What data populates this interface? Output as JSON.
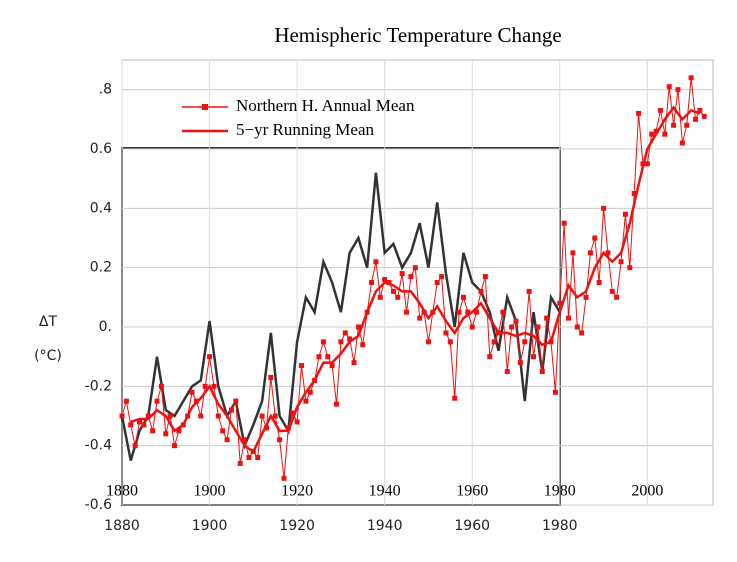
{
  "chart_data": {
    "type": "line",
    "title": "Hemispheric Temperature Change",
    "ylabel": "ΔT",
    "yunit": "(°C)",
    "xlim": [
      1880,
      2015
    ],
    "ylim": [
      -0.6,
      0.9
    ],
    "xticks": [
      1880,
      1900,
      1920,
      1940,
      1960,
      1980,
      2000
    ],
    "old_xticks": [
      1880,
      1900,
      1920,
      1940,
      1960,
      1980
    ],
    "yticks": [
      {
        "value": 0.8,
        "label": ".8"
      },
      0.6,
      0.4,
      0.2,
      {
        "value": 0,
        "label": "0."
      },
      -0.2,
      -0.4,
      -0.6
    ],
    "grid": true,
    "legend": "upper left",
    "series": [
      {
        "color": "#333333",
        "x": [
          1880,
          1882,
          1884,
          1886,
          1888,
          1890,
          1892,
          1894,
          1896,
          1898,
          1900,
          1902,
          1904,
          1906,
          1908,
          1910,
          1912,
          1914,
          1916,
          1918,
          1920,
          1922,
          1924,
          1926,
          1928,
          1930,
          1932,
          1934,
          1936,
          1938,
          1940,
          1942,
          1944,
          1946,
          1948,
          1950,
          1952,
          1954,
          1956,
          1958,
          1960,
          1962,
          1964,
          1966,
          1968,
          1970,
          1972,
          1974,
          1976,
          1978,
          1980
        ],
        "values": [
          -0.3,
          -0.45,
          -0.35,
          -0.3,
          -0.1,
          -0.28,
          -0.3,
          -0.25,
          -0.2,
          -0.18,
          0.02,
          -0.2,
          -0.3,
          -0.25,
          -0.4,
          -0.33,
          -0.25,
          -0.02,
          -0.3,
          -0.35,
          -0.05,
          0.1,
          0.05,
          0.22,
          0.15,
          0.05,
          0.25,
          0.3,
          0.2,
          0.52,
          0.25,
          0.28,
          0.2,
          0.25,
          0.35,
          0.2,
          0.42,
          0.18,
          0.0,
          0.25,
          0.15,
          0.12,
          0.05,
          -0.08,
          0.1,
          0.02,
          -0.25,
          0.05,
          -0.15,
          0.1,
          0.05
        ]
      },
      {
        "name": "Northern H. Annual Mean",
        "color": "#ee1111",
        "markers": true,
        "x": [
          1880,
          1881,
          1882,
          1883,
          1884,
          1885,
          1886,
          1887,
          1888,
          1889,
          1890,
          1891,
          1892,
          1893,
          1894,
          1895,
          1896,
          1897,
          1898,
          1899,
          1900,
          1901,
          1902,
          1903,
          1904,
          1905,
          1906,
          1907,
          1908,
          1909,
          1910,
          1911,
          1912,
          1913,
          1914,
          1915,
          1916,
          1917,
          1918,
          1919,
          1920,
          1921,
          1922,
          1923,
          1924,
          1925,
          1926,
          1927,
          1928,
          1929,
          1930,
          1931,
          1932,
          1933,
          1934,
          1935,
          1936,
          1937,
          1938,
          1939,
          1940,
          1941,
          1942,
          1943,
          1944,
          1945,
          1946,
          1947,
          1948,
          1949,
          1950,
          1951,
          1952,
          1953,
          1954,
          1955,
          1956,
          1957,
          1958,
          1959,
          1960,
          1961,
          1962,
          1963,
          1964,
          1965,
          1966,
          1967,
          1968,
          1969,
          1970,
          1971,
          1972,
          1973,
          1974,
          1975,
          1976,
          1977,
          1978,
          1979,
          1980,
          1981,
          1982,
          1983,
          1984,
          1985,
          1986,
          1987,
          1988,
          1989,
          1990,
          1991,
          1992,
          1993,
          1994,
          1995,
          1996,
          1997,
          1998,
          1999,
          2000,
          2001,
          2002,
          2003,
          2004,
          2005,
          2006,
          2007,
          2008,
          2009,
          2010,
          2011,
          2012,
          2013
        ],
        "values": [
          -0.3,
          -0.25,
          -0.33,
          -0.4,
          -0.32,
          -0.33,
          -0.3,
          -0.35,
          -0.25,
          -0.2,
          -0.36,
          -0.3,
          -0.4,
          -0.35,
          -0.33,
          -0.3,
          -0.22,
          -0.25,
          -0.3,
          -0.2,
          -0.1,
          -0.2,
          -0.3,
          -0.35,
          -0.38,
          -0.28,
          -0.25,
          -0.46,
          -0.38,
          -0.44,
          -0.42,
          -0.44,
          -0.3,
          -0.34,
          -0.17,
          -0.3,
          -0.38,
          -0.51,
          -0.34,
          -0.29,
          -0.32,
          -0.13,
          -0.25,
          -0.22,
          -0.18,
          -0.1,
          -0.05,
          -0.1,
          -0.13,
          -0.26,
          -0.05,
          -0.02,
          -0.04,
          -0.12,
          0.0,
          -0.06,
          0.05,
          0.15,
          0.22,
          0.1,
          0.16,
          0.15,
          0.12,
          0.1,
          0.18,
          0.05,
          0.17,
          0.2,
          0.03,
          0.05,
          -0.05,
          0.05,
          0.15,
          0.17,
          -0.02,
          -0.05,
          -0.24,
          0.05,
          0.1,
          0.05,
          0.0,
          0.05,
          0.12,
          0.17,
          -0.1,
          -0.05,
          -0.02,
          0.05,
          -0.15,
          0.0,
          0.02,
          -0.12,
          -0.05,
          0.12,
          -0.1,
          0.0,
          -0.15,
          0.03,
          -0.05,
          -0.22,
          0.08,
          0.35,
          0.03,
          0.25,
          0.0,
          -0.02,
          0.1,
          0.25,
          0.3,
          0.15,
          0.4,
          0.25,
          0.12,
          0.1,
          0.22,
          0.38,
          0.2,
          0.45,
          0.72,
          0.55,
          0.55,
          0.65,
          0.66,
          0.73,
          0.65,
          0.81,
          0.68,
          0.8,
          0.62,
          0.68,
          0.84,
          0.7,
          0.73,
          0.71
        ]
      },
      {
        "name": "5−yr Running Mean",
        "color": "#ee1111",
        "x": [
          1882,
          1884,
          1886,
          1888,
          1890,
          1892,
          1894,
          1896,
          1898,
          1900,
          1902,
          1904,
          1906,
          1908,
          1910,
          1912,
          1914,
          1916,
          1918,
          1920,
          1922,
          1924,
          1926,
          1928,
          1930,
          1932,
          1934,
          1936,
          1938,
          1940,
          1942,
          1944,
          1946,
          1948,
          1950,
          1952,
          1954,
          1956,
          1958,
          1960,
          1962,
          1964,
          1966,
          1968,
          1970,
          1972,
          1974,
          1976,
          1978,
          1980,
          1982,
          1984,
          1986,
          1988,
          1990,
          1992,
          1994,
          1996,
          1998,
          2000,
          2002,
          2004,
          2006,
          2008,
          2010,
          2012
        ],
        "values": [
          -0.32,
          -0.31,
          -0.31,
          -0.28,
          -0.3,
          -0.35,
          -0.33,
          -0.27,
          -0.24,
          -0.2,
          -0.26,
          -0.3,
          -0.35,
          -0.4,
          -0.42,
          -0.36,
          -0.3,
          -0.35,
          -0.35,
          -0.27,
          -0.22,
          -0.18,
          -0.12,
          -0.12,
          -0.09,
          -0.05,
          -0.03,
          0.05,
          0.12,
          0.15,
          0.14,
          0.12,
          0.12,
          0.08,
          0.03,
          0.07,
          0.02,
          -0.02,
          0.03,
          0.05,
          0.08,
          0.03,
          -0.02,
          -0.02,
          -0.03,
          -0.02,
          -0.03,
          -0.06,
          -0.05,
          0.05,
          0.14,
          0.1,
          0.12,
          0.2,
          0.25,
          0.22,
          0.25,
          0.35,
          0.48,
          0.6,
          0.65,
          0.7,
          0.74,
          0.7,
          0.73,
          0.72
        ]
      }
    ]
  }
}
